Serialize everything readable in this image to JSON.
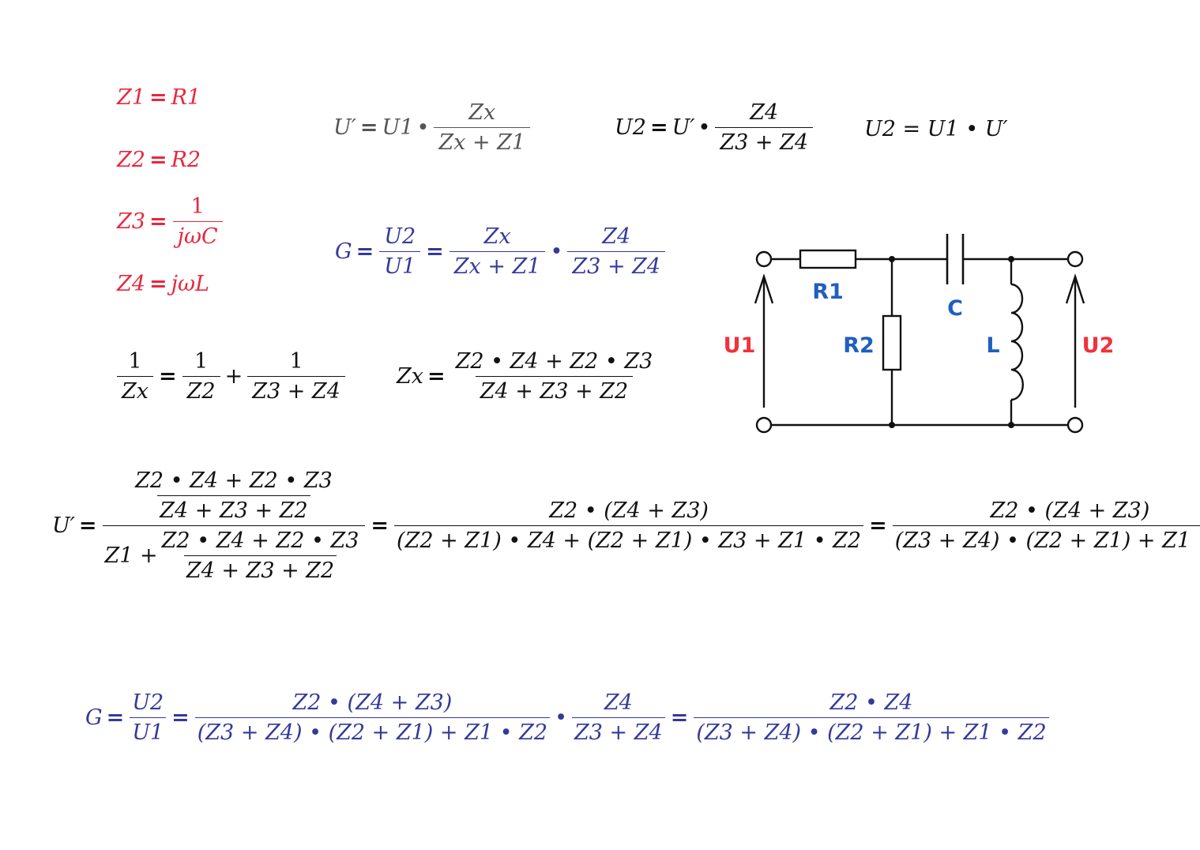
{
  "definitions": {
    "z1": [
      "Z1",
      "=",
      "R1"
    ],
    "z2": [
      "Z2",
      "=",
      "R2"
    ],
    "z3": [
      "Z3",
      "=",
      "1",
      "jωC"
    ],
    "z4": [
      "Z4",
      "=",
      "jωL"
    ]
  },
  "top_row": {
    "uprime": [
      "U′",
      "=",
      "U1",
      "•",
      "Zx",
      "Zx + Z1"
    ],
    "u2_from_uprime": [
      "U2",
      "=",
      "U′",
      "•",
      "Z4",
      "Z3 + Z4"
    ],
    "u2_product": "U2 = U1 • U′"
  },
  "transfer_first": [
    "G",
    "=",
    "U2",
    "U1",
    "=",
    "Zx",
    "Zx + Z1",
    "•",
    "Z4",
    "Z3 + Z4"
  ],
  "parallel": {
    "reciprocal": [
      "1",
      "Zx",
      "=",
      "1",
      "Z2",
      "+",
      "1",
      "Z3 + Z4"
    ],
    "zx": [
      "Zx",
      "=",
      "Z2 • Z4 + Z2 • Z3",
      "Z4 + Z3 + Z2"
    ]
  },
  "expansion": {
    "lhs": "U′",
    "eq": "=",
    "inner_num": "Z2 • Z4 + Z2 • Z3",
    "inner_den": "Z4 + Z3 + Z2",
    "den_prefix": "Z1 +",
    "step2_num": "Z2 • (Z4 + Z3)",
    "step2_den": "(Z2 + Z1) • Z4 + (Z2 + Z1) • Z3 + Z1 • Z2",
    "step3_num": "Z2 • (Z4 + Z3)",
    "step3_den": "(Z3 + Z4) • (Z2 + Z1) + Z1 • Z2"
  },
  "final": {
    "lhs": "G",
    "eq": "=",
    "ratio_num": "U2",
    "ratio_den": "U1",
    "f1_num": "Z2 • (Z4 + Z3)",
    "f1_den": "(Z3 + Z4) • (Z2 + Z1) + Z1 • Z2",
    "dot": "•",
    "f2_num": "Z4",
    "f2_den": "Z3 + Z4",
    "f3_num": "Z2 • Z4",
    "f3_den": "(Z3 + Z4) • (Z2 + Z1) + Z1 • Z2"
  },
  "circuit": {
    "labels": {
      "r1": "R1",
      "r2": "R2",
      "c": "C",
      "l": "L",
      "u1": "U1",
      "u2": "U2"
    },
    "colors": {
      "wire": "#111111",
      "component_label": "#1f5fbf",
      "voltage_label": "#f0323c"
    }
  },
  "colors": {
    "definitions": "#e8283c",
    "transfer": "#35399a",
    "text": "#111111",
    "muted": "#555555"
  }
}
